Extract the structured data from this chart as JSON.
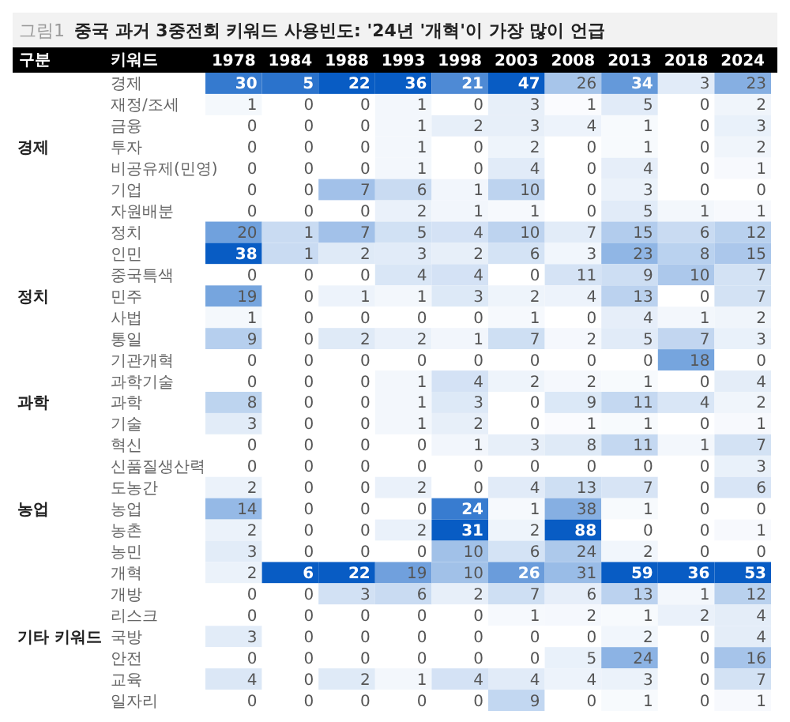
{
  "chart_data": {
    "type": "heatmap",
    "title": "중국 과거 3중전회 키워드 사용빈도: '24년 '개혁'이 가장 많이 언급",
    "annotations": [
      "그림1"
    ],
    "ylabel": "키워드",
    "y2label": "구분",
    "data_labels": true,
    "legend": false,
    "grid": false,
    "categories": [
      "1978",
      "1984",
      "1988",
      "1993",
      "1998",
      "2003",
      "2008",
      "2013",
      "2018",
      "2024"
    ],
    "y_categories": [
      "경제",
      "재정/조세",
      "금융",
      "투자",
      "비공유제(민영)",
      "기업",
      "자원배분",
      "정치",
      "인민",
      "중국특색",
      "민주",
      "사법",
      "통일",
      "기관개혁",
      "과학기술",
      "과학",
      "기술",
      "혁신",
      "신품질생산력",
      "도농간",
      "농업",
      "농촌",
      "농민",
      "개혁",
      "개방",
      "리스크",
      "국방",
      "안전",
      "교육",
      "일자리"
    ],
    "y2_categories": [
      null,
      null,
      null,
      "경제",
      null,
      null,
      null,
      null,
      null,
      null,
      "정치",
      null,
      null,
      null,
      null,
      "과학",
      null,
      null,
      null,
      null,
      "농업",
      null,
      null,
      null,
      null,
      null,
      "기타 키워드",
      null,
      null,
      null
    ],
    "cells": [
      [
        30,
        5,
        22,
        36,
        21,
        47,
        26,
        34,
        3,
        23
      ],
      [
        1,
        0,
        0,
        1,
        0,
        3,
        1,
        5,
        0,
        2
      ],
      [
        0,
        0,
        0,
        1,
        2,
        3,
        4,
        1,
        0,
        3
      ],
      [
        0,
        0,
        0,
        1,
        0,
        2,
        0,
        1,
        0,
        2
      ],
      [
        0,
        0,
        0,
        1,
        0,
        4,
        0,
        4,
        0,
        1
      ],
      [
        0,
        0,
        7,
        6,
        1,
        10,
        0,
        3,
        0,
        0
      ],
      [
        0,
        0,
        0,
        2,
        1,
        1,
        0,
        5,
        1,
        1
      ],
      [
        20,
        1,
        7,
        5,
        4,
        10,
        7,
        15,
        6,
        12
      ],
      [
        38,
        1,
        2,
        3,
        2,
        6,
        3,
        23,
        8,
        15
      ],
      [
        0,
        0,
        0,
        4,
        4,
        0,
        11,
        9,
        10,
        7
      ],
      [
        19,
        0,
        1,
        1,
        3,
        2,
        4,
        13,
        0,
        7
      ],
      [
        1,
        0,
        0,
        0,
        0,
        1,
        0,
        4,
        1,
        2
      ],
      [
        9,
        0,
        2,
        2,
        1,
        7,
        2,
        5,
        7,
        3
      ],
      [
        0,
        0,
        0,
        0,
        0,
        0,
        0,
        0,
        18,
        0
      ],
      [
        0,
        0,
        0,
        1,
        4,
        2,
        2,
        1,
        0,
        4
      ],
      [
        8,
        0,
        0,
        1,
        3,
        0,
        9,
        11,
        4,
        2
      ],
      [
        3,
        0,
        0,
        1,
        2,
        0,
        1,
        1,
        0,
        1
      ],
      [
        0,
        0,
        0,
        0,
        1,
        3,
        8,
        11,
        1,
        7
      ],
      [
        0,
        0,
        0,
        0,
        0,
        0,
        0,
        0,
        0,
        3
      ],
      [
        2,
        0,
        0,
        2,
        0,
        4,
        13,
        7,
        0,
        6
      ],
      [
        14,
        0,
        0,
        0,
        24,
        1,
        38,
        1,
        0,
        0
      ],
      [
        2,
        0,
        0,
        2,
        31,
        2,
        88,
        0,
        0,
        1
      ],
      [
        3,
        0,
        0,
        0,
        10,
        6,
        24,
        2,
        0,
        0
      ],
      [
        2,
        6,
        22,
        19,
        10,
        26,
        31,
        59,
        36,
        53
      ],
      [
        0,
        0,
        3,
        6,
        2,
        7,
        6,
        13,
        1,
        12
      ],
      [
        0,
        0,
        0,
        0,
        0,
        1,
        2,
        1,
        2,
        4
      ],
      [
        3,
        0,
        0,
        0,
        0,
        0,
        0,
        2,
        0,
        4
      ],
      [
        0,
        0,
        0,
        0,
        0,
        0,
        5,
        24,
        0,
        16
      ],
      [
        4,
        0,
        2,
        1,
        4,
        4,
        4,
        3,
        0,
        7
      ],
      [
        0,
        0,
        0,
        0,
        0,
        9,
        0,
        1,
        0,
        1
      ]
    ]
  }
}
